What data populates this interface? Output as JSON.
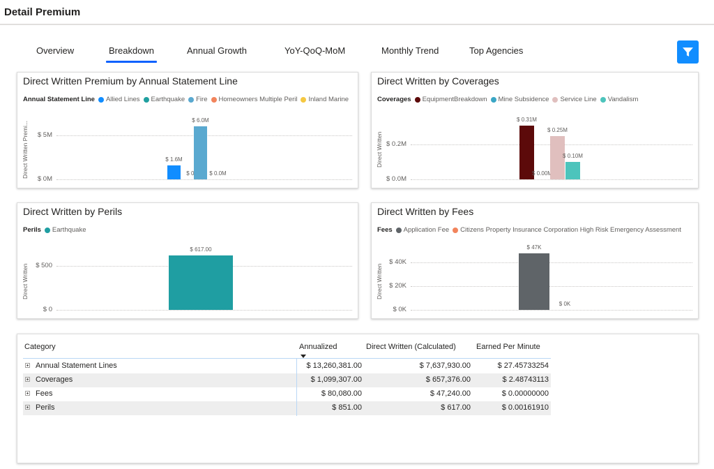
{
  "app": {
    "title": "Detail Premium"
  },
  "tabs": [
    {
      "label": "Overview"
    },
    {
      "label": "Breakdown",
      "active": true
    },
    {
      "label": "Annual Growth"
    },
    {
      "label": "YoY-QoQ-MoM"
    },
    {
      "label": "Monthly Trend"
    },
    {
      "label": "Top Agencies"
    }
  ],
  "filter_button": {
    "icon": "filter-icon",
    "color": "#118dff"
  },
  "charts": {
    "asl": {
      "title": "Direct Written Premium by Annual Statement Line",
      "legend_title": "Annual Statement Line",
      "legend": [
        {
          "label": "Allied Lines",
          "color": "#118dff"
        },
        {
          "label": "Earthquake",
          "color": "#20a0a0"
        },
        {
          "label": "Fire",
          "color": "#5aa9d0"
        },
        {
          "label": "Homeowners Multiple Peril",
          "color": "#f2845c"
        },
        {
          "label": "Inland Marine",
          "color": "#f5c842"
        }
      ],
      "ylabel": "Direct Written Premi...",
      "ticks": [
        "$ 5M",
        "$ 0M"
      ]
    },
    "cov": {
      "title": "Direct Written by Coverages",
      "legend_title": "Coverages",
      "legend": [
        {
          "label": "EquipmentBreakdown",
          "color": "#5c0a0a"
        },
        {
          "label": "Mine Subsidence",
          "color": "#3aa6c5"
        },
        {
          "label": "Service Line",
          "color": "#e0bfbe"
        },
        {
          "label": "Vandalism",
          "color": "#4dc4bc"
        }
      ],
      "ylabel": "Direct Written",
      "ticks": [
        "$ 0.2M",
        "$ 0.0M"
      ]
    },
    "perils": {
      "title": "Direct Written by Perils",
      "legend_title": "Perils",
      "legend": [
        {
          "label": "Earthquake",
          "color": "#1f9ea2"
        }
      ],
      "ylabel": "Direct Written",
      "ticks": [
        "$ 500",
        "$ 0"
      ]
    },
    "fees": {
      "title": "Direct Written by Fees",
      "legend_title": "Fees",
      "legend": [
        {
          "label": "Application Fee",
          "color": "#5f6468"
        },
        {
          "label": "Citizens Property Insurance Corporation High Risk Emergency Assessment",
          "color": "#f2845c"
        }
      ],
      "ylabel": "Direct Written",
      "ticks": [
        "$ 40K",
        "$ 20K",
        "$ 0K"
      ]
    }
  },
  "chart_data": [
    {
      "type": "bar",
      "title": "Direct Written Premium by Annual Statement Line",
      "ylabel": "Direct Written Premi...",
      "ylim": [
        0,
        6.5
      ],
      "unit": "M",
      "yticks": [
        0,
        5
      ],
      "categories": [
        "Allied Lines",
        "Earthquake",
        "Fire",
        "Homeowners Multiple Peril",
        "Inland Marine"
      ],
      "values": [
        1.6,
        0.0,
        6.0,
        0.0,
        0.0
      ],
      "labels": [
        "$ 1.6M",
        "$ 0.0M",
        "$ 6.0M",
        "$ 0.0M",
        null
      ],
      "colors": [
        "#118dff",
        "#20a0a0",
        "#5aa9d0",
        "#f2845c",
        "#f5c842"
      ]
    },
    {
      "type": "bar",
      "title": "Direct Written by Coverages",
      "ylabel": "Direct Written",
      "ylim": [
        0,
        0.33
      ],
      "unit": "M",
      "yticks": [
        0,
        0.2
      ],
      "categories": [
        "EquipmentBreakdown",
        "Mine Subsidence",
        "Service Line",
        "Vandalism"
      ],
      "values": [
        0.31,
        0.0,
        0.25,
        0.1
      ],
      "labels": [
        "$ 0.31M",
        "$ 0.00M",
        "$ 0.25M",
        "$ 0.10M"
      ],
      "colors": [
        "#5c0a0a",
        "#3aa6c5",
        "#e0bfbe",
        "#4dc4bc"
      ]
    },
    {
      "type": "bar",
      "title": "Direct Written by Perils",
      "ylabel": "Direct Written",
      "ylim": [
        0,
        650
      ],
      "yticks": [
        0,
        500
      ],
      "categories": [
        "Earthquake"
      ],
      "values": [
        617
      ],
      "labels": [
        "$ 617.00"
      ],
      "colors": [
        "#1f9ea2"
      ]
    },
    {
      "type": "bar",
      "title": "Direct Written by Fees",
      "ylabel": "Direct Written",
      "ylim": [
        0,
        48
      ],
      "unit": "K",
      "yticks": [
        0,
        20,
        40
      ],
      "categories": [
        "Application Fee",
        "Citizens Property Insurance Corporation High Risk Emergency Assessment"
      ],
      "values": [
        47.24,
        0
      ],
      "labels": [
        "$ 47K",
        "$ 0K"
      ],
      "colors": [
        "#5f6468",
        "#f2845c"
      ]
    },
    {
      "type": "table",
      "columns": [
        "Category",
        "Annualized",
        "Direct Written (Calculated)",
        "Earned Per Minute"
      ],
      "rows": [
        [
          "Annual Statement Lines",
          "$ 13,260,381.00",
          "$ 7,637,930.00",
          "$ 27.45733254"
        ],
        [
          "Coverages",
          "$ 1,099,307.00",
          "$ 657,376.00",
          "$ 2.48743113"
        ],
        [
          "Fees",
          "$ 80,080.00",
          "$ 47,240.00",
          "$ 0.00000000"
        ],
        [
          "Perils",
          "$ 851.00",
          "$ 617.00",
          "$ 0.00161910"
        ]
      ]
    }
  ],
  "table": {
    "headers": {
      "category": "Category",
      "annualized": "Annualized",
      "direct_written": "Direct Written (Calculated)",
      "earned_per_minute": "Earned Per Minute"
    },
    "rows": [
      {
        "category": "Annual Statement Lines",
        "annualized": "$ 13,260,381.00",
        "direct_written": "$ 7,637,930.00",
        "earned_per_minute": "$ 27.45733254"
      },
      {
        "category": "Coverages",
        "annualized": "$ 1,099,307.00",
        "direct_written": "$ 657,376.00",
        "earned_per_minute": "$ 2.48743113"
      },
      {
        "category": "Fees",
        "annualized": "$ 80,080.00",
        "direct_written": "$ 47,240.00",
        "earned_per_minute": "$ 0.00000000"
      },
      {
        "category": "Perils",
        "annualized": "$ 851.00",
        "direct_written": "$ 617.00",
        "earned_per_minute": "$ 0.00161910"
      }
    ]
  }
}
